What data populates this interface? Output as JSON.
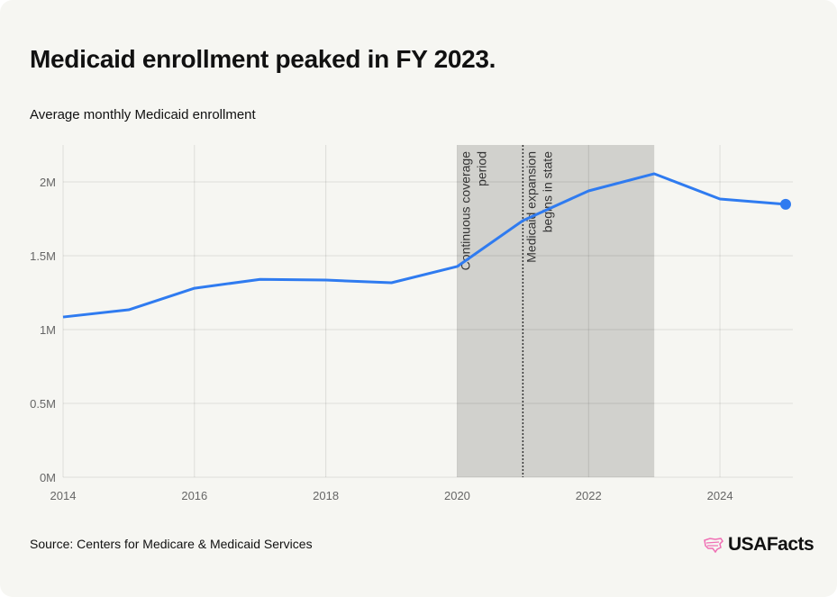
{
  "title": "Medicaid enrollment peaked in FY 2023.",
  "subtitle": "Average monthly Medicaid enrollment",
  "source": "Source: Centers for Medicare & Medicaid Services",
  "logo": "USAFacts",
  "colors": {
    "line": "#2f7bf0",
    "shade": "#d1d1cd",
    "background": "#f6f6f2",
    "logo_accent": "#f06fb4"
  },
  "chart_data": {
    "type": "line",
    "title": "Average monthly Medicaid enrollment",
    "xlabel": "",
    "ylabel": "",
    "xlim": [
      2014,
      2025
    ],
    "ylim": [
      0,
      2.25
    ],
    "x_ticks": [
      2014,
      2016,
      2018,
      2020,
      2022,
      2024
    ],
    "y_ticks": [
      {
        "value": 0,
        "label": "0M"
      },
      {
        "value": 0.5,
        "label": "0.5M"
      },
      {
        "value": 1,
        "label": "1M"
      },
      {
        "value": 1.5,
        "label": "1.5M"
      },
      {
        "value": 2,
        "label": "2M"
      }
    ],
    "grid": true,
    "series": [
      {
        "name": "Average monthly Medicaid enrollment (millions)",
        "x": [
          2014,
          2015,
          2016,
          2017,
          2018,
          2019,
          2020,
          2021,
          2022,
          2023,
          2024,
          2025
        ],
        "values": [
          1.085,
          1.134,
          1.28,
          1.34,
          1.335,
          1.317,
          1.427,
          1.738,
          1.939,
          2.055,
          1.884,
          1.848
        ]
      }
    ],
    "annotations": [
      {
        "type": "shaded_range",
        "x_start": 2020,
        "x_end": 2023,
        "lines": [
          "Continuous coverage",
          "period"
        ]
      },
      {
        "type": "vertical_line",
        "x": 2021,
        "style": "dotted",
        "lines": [
          "Medicaid expansion",
          "begins in state"
        ]
      }
    ]
  }
}
